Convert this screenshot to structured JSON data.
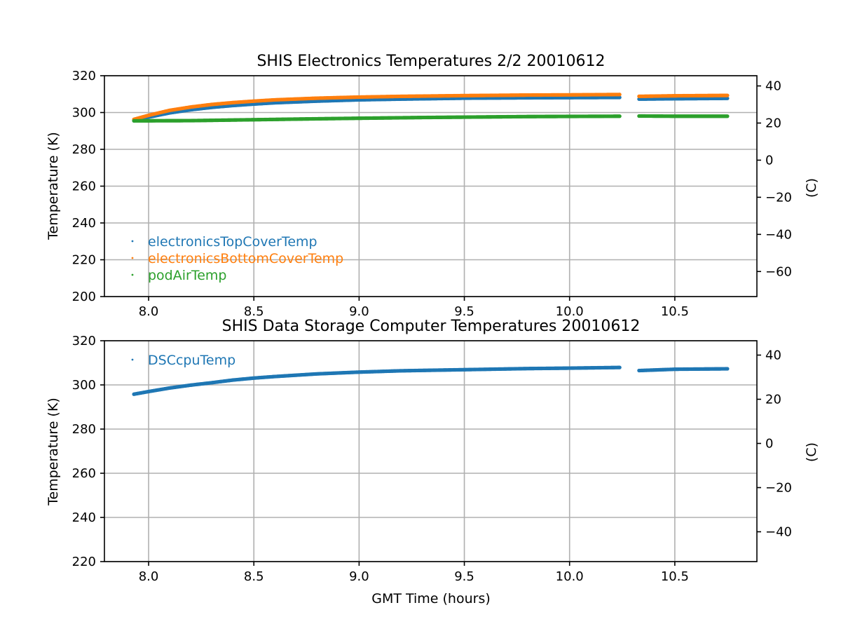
{
  "chart_data": [
    {
      "type": "scatter",
      "title": "SHIS Electronics Temperatures 2/2 20010612",
      "xlabel": "",
      "ylabel": "Temperature (K)",
      "y2label": "(C)",
      "xlim": [
        7.79,
        10.89
      ],
      "ylim": [
        200,
        320
      ],
      "xticks": [
        8.0,
        8.5,
        9.0,
        9.5,
        10.0,
        10.5
      ],
      "xtick_labels": [
        "8.0",
        "8.5",
        "9.0",
        "9.5",
        "10.0",
        "10.5"
      ],
      "yticks": [
        200,
        220,
        240,
        260,
        280,
        300,
        320
      ],
      "ytick_labels": [
        "200",
        "220",
        "240",
        "260",
        "280",
        "300",
        "320"
      ],
      "y2ticks": [
        40,
        20,
        0,
        -20,
        -40,
        -60
      ],
      "y2tick_labels": [
        "40",
        "20",
        "0",
        "−20",
        "−40",
        "−60"
      ],
      "grid": true,
      "legend_position": "lower-left",
      "series": [
        {
          "name": "electronicsTopCoverTemp",
          "color": "#1f77b4",
          "segments": [
            {
              "x": [
                7.93,
                8.0,
                8.1,
                8.2,
                8.3,
                8.4,
                8.5,
                8.6,
                8.8,
                9.0,
                9.2,
                9.5,
                9.8,
                10.0,
                10.24
              ],
              "y": [
                295.5,
                297.5,
                299.8,
                301.5,
                302.8,
                303.8,
                304.6,
                305.3,
                306.2,
                306.9,
                307.3,
                307.8,
                308.0,
                308.1,
                308.2
              ]
            },
            {
              "x": [
                10.33,
                10.5,
                10.75
              ],
              "y": [
                307.3,
                307.5,
                307.7
              ]
            }
          ]
        },
        {
          "name": "electronicsBottomCoverTemp",
          "color": "#ff7f0e",
          "segments": [
            {
              "x": [
                7.93,
                8.0,
                8.1,
                8.2,
                8.3,
                8.4,
                8.5,
                8.6,
                8.8,
                9.0,
                9.2,
                9.5,
                9.8,
                10.0,
                10.24
              ],
              "y": [
                296.3,
                298.5,
                301.2,
                303.0,
                304.4,
                305.4,
                306.2,
                306.9,
                307.8,
                308.4,
                308.8,
                309.2,
                309.5,
                309.6,
                309.8
              ]
            },
            {
              "x": [
                10.33,
                10.5,
                10.75
              ],
              "y": [
                308.8,
                309.1,
                309.3
              ]
            }
          ]
        },
        {
          "name": "podAirTemp",
          "color": "#2ca02c",
          "segments": [
            {
              "x": [
                7.93,
                8.2,
                8.5,
                8.8,
                9.0,
                9.3,
                9.5,
                9.8,
                10.0,
                10.24
              ],
              "y": [
                295.5,
                295.6,
                296.1,
                296.6,
                296.9,
                297.3,
                297.5,
                297.8,
                297.9,
                298.0
              ]
            },
            {
              "x": [
                10.33,
                10.5,
                10.75
              ],
              "y": [
                298.1,
                298.0,
                298.0
              ]
            }
          ]
        }
      ]
    },
    {
      "type": "scatter",
      "title": "SHIS Data Storage Computer Temperatures 20010612",
      "xlabel": "GMT Time (hours)",
      "ylabel": "Temperature (K)",
      "y2label": "(C)",
      "xlim": [
        7.79,
        10.89
      ],
      "ylim": [
        220,
        320
      ],
      "xticks": [
        8.0,
        8.5,
        9.0,
        9.5,
        10.0,
        10.5
      ],
      "xtick_labels": [
        "8.0",
        "8.5",
        "9.0",
        "9.5",
        "10.0",
        "10.5"
      ],
      "yticks": [
        220,
        240,
        260,
        280,
        300,
        320
      ],
      "ytick_labels": [
        "220",
        "240",
        "260",
        "280",
        "300",
        "320"
      ],
      "y2ticks": [
        40,
        20,
        0,
        -20,
        -40
      ],
      "y2tick_labels": [
        "40",
        "20",
        "0",
        "−20",
        "−40"
      ],
      "grid": true,
      "legend_position": "upper-left",
      "series": [
        {
          "name": "DSCcpuTemp",
          "color": "#1f77b4",
          "segments": [
            {
              "x": [
                7.93,
                8.0,
                8.1,
                8.2,
                8.3,
                8.4,
                8.5,
                8.6,
                8.8,
                9.0,
                9.2,
                9.5,
                9.8,
                10.0,
                10.24
              ],
              "y": [
                295.8,
                297.0,
                298.6,
                299.9,
                301.0,
                302.2,
                303.1,
                303.8,
                305.0,
                305.8,
                306.4,
                306.9,
                307.4,
                307.6,
                307.9
              ]
            },
            {
              "x": [
                10.33,
                10.5,
                10.75
              ],
              "y": [
                306.5,
                307.1,
                307.3
              ]
            }
          ]
        }
      ]
    }
  ]
}
